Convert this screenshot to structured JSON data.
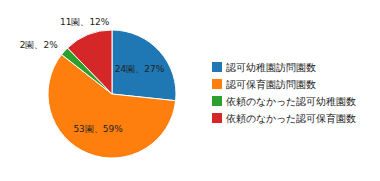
{
  "chart_data": {
    "type": "pie",
    "categories": [
      "認可幼稚園訪問園数",
      "認可保育園訪問園数",
      "依頼のなかった認可幼稚園数",
      "依頼のなかった認可保育園数"
    ],
    "values": [
      24,
      53,
      2,
      11
    ],
    "value_labels": [
      "24園、27%",
      "53園、59%",
      "2園、2%",
      "11園、12%"
    ],
    "data_labels": true,
    "legend": "right"
  }
}
